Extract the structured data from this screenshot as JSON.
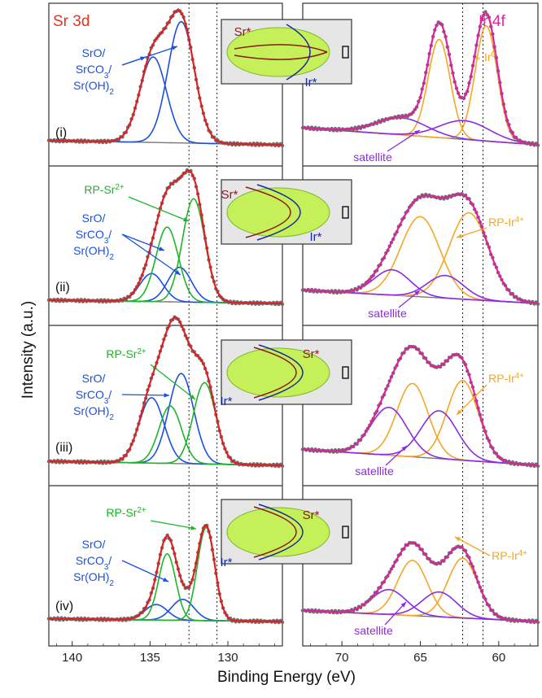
{
  "figure": {
    "ylabel": "Intensity (a.u.)",
    "xlabel": "Binding Energy (eV)",
    "left_title": "Sr 3d",
    "right_title": "Ir 4f",
    "panel_labels": [
      "(i)",
      "(ii)",
      "(iii)",
      "(iv)"
    ],
    "left_xticks": [
      140,
      135,
      130
    ],
    "right_xticks": [
      70,
      65,
      60
    ],
    "left_xlim": [
      141.5,
      126.5
    ],
    "right_xlim": [
      72.5,
      57.5
    ],
    "dotted_lines_left": [
      132.5,
      130.7
    ],
    "dotted_lines_right": [
      62.3,
      61.0
    ],
    "labels": {
      "sro_line1": "SrO/",
      "sro_line2": "SrCO",
      "sro_line2_sub": "3",
      "sro_line2_end": "/",
      "sro_line3": "Sr(OH)",
      "sro_line3_sub": "2",
      "rp_sr": "RP-Sr",
      "rp_sr_sup": "2+",
      "ir0": "Ir",
      "ir0_sup": "0",
      "rp_ir": "RP-Ir",
      "rp_ir_sup": "4+",
      "satellite": "satellite",
      "inset_sr": "Sr*",
      "inset_ir": "Ir*"
    },
    "colors": {
      "envelope_left": "#e02020",
      "envelope_right": "#e020a0",
      "data_points": "#6e6e6e",
      "sro_component": "#1a4fe0",
      "rp_sr_component": "#1db52a",
      "ir0_component": "#f5a623",
      "satellite_component": "#8b2be2",
      "background": "#777777",
      "title_left": "#e8331c",
      "title_right": "#e0289c",
      "inset_bg": "#e6e6e6",
      "inset_ellipse": "#c6f05a",
      "sr_trace": "#8b1a1a",
      "ir_trace": "#1a2a99"
    }
  },
  "chart_data": [
    {
      "type": "line",
      "panel": "(i)",
      "side": "left",
      "xlabel": "Binding Energy (eV)",
      "series": [
        {
          "name": "SrO/SrCO3/Sr(OH)2",
          "peaks": [
            {
              "center": 134.8,
              "amp": 1.0,
              "width": 0.85
            },
            {
              "center": 133.0,
              "amp": 1.42,
              "width": 0.85
            }
          ]
        }
      ]
    },
    {
      "type": "line",
      "panel": "(i)",
      "side": "right",
      "xlabel": "Binding Energy (eV)",
      "series": [
        {
          "name": "Ir0",
          "peaks": [
            {
              "center": 63.8,
              "amp": 1.15,
              "width": 0.7
            },
            {
              "center": 60.8,
              "amp": 1.35,
              "width": 0.7
            }
          ]
        },
        {
          "name": "satellite",
          "peaks": [
            {
              "center": 66.2,
              "amp": 0.2,
              "width": 1.6
            },
            {
              "center": 62.2,
              "amp": 0.22,
              "width": 1.6
            }
          ]
        }
      ]
    },
    {
      "type": "line",
      "panel": "(ii)",
      "side": "left",
      "xlabel": "Binding Energy (eV)",
      "series": [
        {
          "name": "SrO/SrCO3/Sr(OH)2",
          "peaks": [
            {
              "center": 134.9,
              "amp": 0.42,
              "width": 0.75
            },
            {
              "center": 133.1,
              "amp": 0.52,
              "width": 0.75
            }
          ]
        },
        {
          "name": "RP-Sr2+",
          "peaks": [
            {
              "center": 133.9,
              "amp": 1.12,
              "width": 0.72
            },
            {
              "center": 132.2,
              "amp": 1.55,
              "width": 0.72
            }
          ]
        }
      ]
    },
    {
      "type": "line",
      "panel": "(ii)",
      "side": "right",
      "xlabel": "Binding Energy (eV)",
      "series": [
        {
          "name": "RP-Ir4+",
          "peaks": [
            {
              "center": 65.0,
              "amp": 1.2,
              "width": 1.25
            },
            {
              "center": 61.9,
              "amp": 1.3,
              "width": 1.25
            }
          ]
        },
        {
          "name": "satellite",
          "peaks": [
            {
              "center": 66.8,
              "amp": 0.38,
              "width": 1.15
            },
            {
              "center": 63.4,
              "amp": 0.34,
              "width": 1.15
            }
          ]
        }
      ]
    },
    {
      "type": "line",
      "panel": "(iii)",
      "side": "left",
      "xlabel": "Binding Energy (eV)",
      "series": [
        {
          "name": "SrO/SrCO3/Sr(OH)2",
          "peaks": [
            {
              "center": 134.9,
              "amp": 0.82,
              "width": 0.8
            },
            {
              "center": 133.0,
              "amp": 1.13,
              "width": 0.8
            }
          ]
        },
        {
          "name": "RP-Sr2+",
          "peaks": [
            {
              "center": 133.7,
              "amp": 0.72,
              "width": 0.72
            },
            {
              "center": 131.5,
              "amp": 1.02,
              "width": 0.72
            }
          ]
        }
      ]
    },
    {
      "type": "line",
      "panel": "(iii)",
      "side": "right",
      "xlabel": "Binding Energy (eV)",
      "series": [
        {
          "name": "RP-Ir4+",
          "peaks": [
            {
              "center": 65.5,
              "amp": 0.92,
              "width": 1.0
            },
            {
              "center": 62.3,
              "amp": 1.0,
              "width": 1.0
            }
          ]
        },
        {
          "name": "satellite",
          "peaks": [
            {
              "center": 67.0,
              "amp": 0.6,
              "width": 1.15
            },
            {
              "center": 63.8,
              "amp": 0.6,
              "width": 1.15
            }
          ]
        }
      ]
    },
    {
      "type": "line",
      "panel": "(iv)",
      "side": "left",
      "xlabel": "Binding Energy (eV)",
      "series": [
        {
          "name": "SrO/SrCO3/Sr(OH)2",
          "peaks": [
            {
              "center": 134.6,
              "amp": 0.28,
              "width": 0.72
            },
            {
              "center": 132.9,
              "amp": 0.38,
              "width": 0.72
            }
          ]
        },
        {
          "name": "RP-Sr2+",
          "peaks": [
            {
              "center": 133.9,
              "amp": 1.2,
              "width": 0.55
            },
            {
              "center": 131.4,
              "amp": 1.68,
              "width": 0.55
            }
          ]
        }
      ]
    },
    {
      "type": "line",
      "panel": "(iv)",
      "side": "right",
      "xlabel": "Binding Energy (eV)",
      "series": [
        {
          "name": "RP-Ir4+",
          "peaks": [
            {
              "center": 65.5,
              "amp": 1.0,
              "width": 0.95
            },
            {
              "center": 62.3,
              "amp": 1.08,
              "width": 0.95
            }
          ]
        },
        {
          "name": "satellite",
          "peaks": [
            {
              "center": 67.0,
              "amp": 0.45,
              "width": 1.1
            },
            {
              "center": 63.8,
              "amp": 0.45,
              "width": 1.1
            }
          ]
        }
      ]
    }
  ]
}
